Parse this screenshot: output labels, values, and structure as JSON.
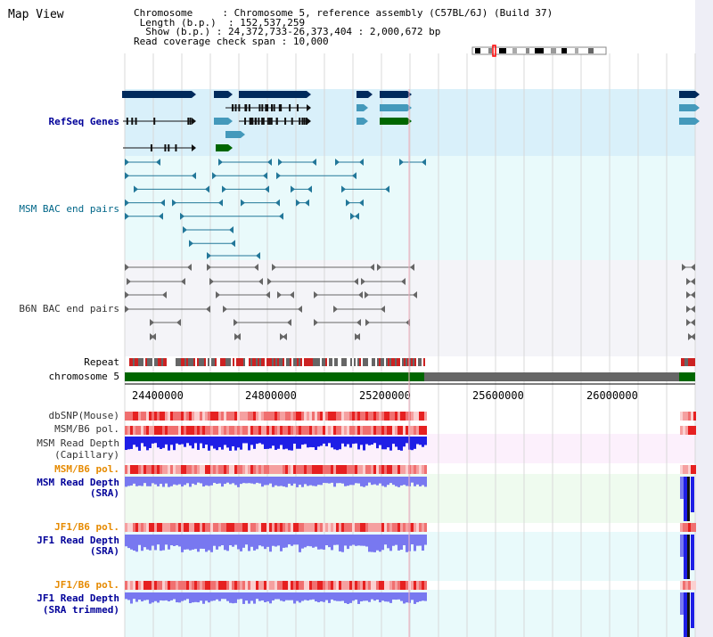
{
  "view_title": "Map View",
  "info": {
    "chromosome_key": "Chromosome",
    "chromosome_value": "Chromosome 5, reference assembly (C57BL/6J) (Build 37)",
    "length_key": "Length (b.p.)",
    "length_value": "152,537,259",
    "show_key": "Show (b.p.)",
    "show_value": "24,372,733-26,373,404 : 2,000,672 bp",
    "coverage_key": "Read coverage check span",
    "coverage_value": "10,000"
  },
  "tracks": {
    "refseq": "RefSeq Genes",
    "msm_bac": "MSM BAC end pairs",
    "b6n_bac": "B6N BAC end pairs",
    "repeat": "Repeat",
    "chromosome": "chromosome 5",
    "dbsnp": "dbSNP(Mouse)",
    "msm_b6_pol_1": "MSM/B6 pol.",
    "msm_depth_cap_1": "MSM Read Depth",
    "msm_depth_cap_2": "(Capillary)",
    "msm_b6_pol_2": "MSM/B6 pol.",
    "msm_depth_sra_1": "MSM Read Depth",
    "msm_depth_sra_2": "(SRA)",
    "jf1_b6_pol_1": "JF1/B6 pol.",
    "jf1_depth_sra_1": "JF1 Read Depth",
    "jf1_depth_sra_2": "(SRA)",
    "jf1_b6_pol_2": "JF1/B6 pol.",
    "jf1_depth_trim_1": "JF1 Read Depth",
    "jf1_depth_trim_2": "(SRA trimmed)"
  },
  "axis_ticks": [
    "24400000",
    "24800000",
    "25200000",
    "25600000",
    "26000000"
  ],
  "colors": {
    "refseq_bg": "#d9f0fa",
    "bac_bg": "#e9fafb",
    "b6n_bg": "#f4f4f8",
    "capillary_bg": "#fcf0fc",
    "msm_sra_bg": "#effbef",
    "jf1_bg": "#e9fafb",
    "navy_gene": "#002a5c",
    "green_gene": "#006600",
    "blue_gene": "#4499bb",
    "chromosome_green": "#006600",
    "chromosome_gray": "#666666",
    "depth_blue": "#1e1ee6",
    "depth_light": "#7878f0"
  },
  "icons": {
    "ideogram": "chromosome-ideogram-icon"
  }
}
